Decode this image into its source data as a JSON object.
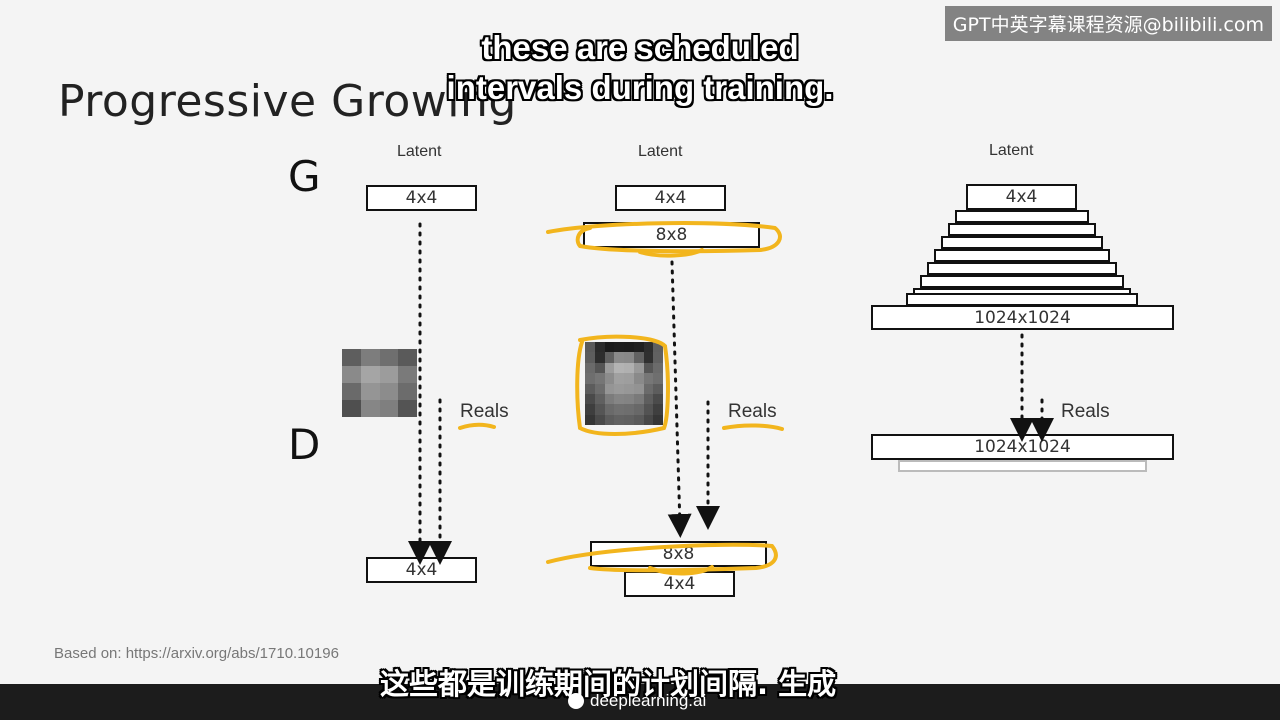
{
  "slide": {
    "title": "Progressive Growing",
    "generator_letter": "G",
    "discriminator_letter": "D",
    "source": "Based on: https://arxiv.org/abs/1710.10196",
    "columns": [
      {
        "latent": "Latent",
        "generator_box": "4x4",
        "reals": "Reals",
        "discriminator_box": "4x4"
      },
      {
        "latent": "Latent",
        "generator_box_1": "4x4",
        "generator_box_2": "8x8",
        "reals": "Reals",
        "discriminator_box_1": "8x8",
        "discriminator_box_2": "4x4"
      },
      {
        "latent": "Latent",
        "generator_box_top": "4x4",
        "generator_box_bottom": "1024x1024",
        "reals": "Reals",
        "discriminator_box": "1024x1024"
      }
    ]
  },
  "subtitles": {
    "english": "these are scheduled intervals during training.",
    "chinese": "这些都是训练期间的计划间隔.  生成"
  },
  "watermark": {
    "text": "GPT中英字幕课程资源@bilibili.com"
  },
  "footer": {
    "brand": "deeplearning.ai"
  },
  "colors": {
    "highlight": "#f2b51d",
    "background": "#f4f4f4"
  }
}
